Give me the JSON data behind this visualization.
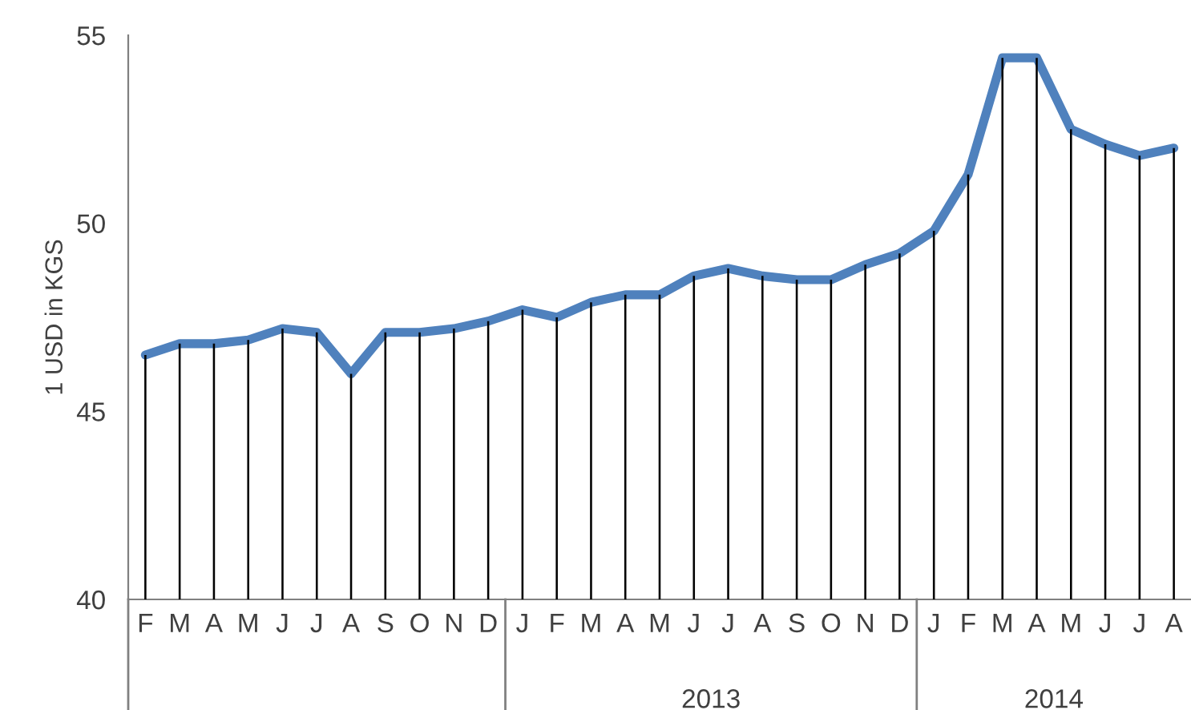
{
  "chart_data": {
    "type": "line",
    "ylabel": "1 USD in KGS",
    "categories": [
      "F",
      "M",
      "A",
      "M",
      "J",
      "J",
      "A",
      "S",
      "O",
      "N",
      "D",
      "J",
      "F",
      "M",
      "A",
      "M",
      "J",
      "J",
      "A",
      "S",
      "O",
      "N",
      "D",
      "J",
      "F",
      "M",
      "A",
      "M",
      "J",
      "J",
      "A"
    ],
    "series": [
      {
        "type": "bar",
        "color": "#000000",
        "values": [
          46.5,
          46.8,
          46.8,
          46.9,
          47.2,
          47.1,
          46.0,
          47.1,
          47.1,
          47.2,
          47.4,
          47.7,
          47.5,
          47.9,
          48.1,
          48.1,
          48.6,
          48.8,
          48.6,
          48.5,
          48.5,
          48.9,
          49.2,
          49.8,
          51.3,
          54.4,
          54.4,
          52.5,
          52.1,
          51.8,
          52.0
        ]
      },
      {
        "color": "#4f81bd",
        "values": [
          46.5,
          46.8,
          46.8,
          46.9,
          47.2,
          47.1,
          46.0,
          47.1,
          47.1,
          47.2,
          47.4,
          47.7,
          47.5,
          47.9,
          48.1,
          48.1,
          48.6,
          48.8,
          48.6,
          48.5,
          48.5,
          48.9,
          49.2,
          49.8,
          51.3,
          54.4,
          54.4,
          52.5,
          52.1,
          51.8,
          52.0
        ]
      }
    ],
    "ylim": [
      40,
      55
    ],
    "yticks": [
      40,
      45,
      50,
      55
    ],
    "annotations": [
      "2013",
      "2014"
    ],
    "legend": false,
    "marker": "none",
    "line_style": "solid"
  }
}
